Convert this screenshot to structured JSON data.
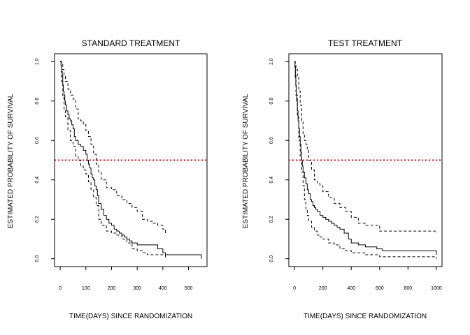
{
  "chart_data": [
    {
      "type": "line",
      "title": "STANDARD TREATMENT",
      "xlabel": "TIME(DAYS) SINCE RANDOMIZATION",
      "ylabel": "ESTIMATED  PROBABILITY  OF  SURVIVAL",
      "xlim": [
        -22,
        572
      ],
      "ylim": [
        -0.04,
        1.04
      ],
      "xticks": [
        0,
        100,
        200,
        300,
        400,
        500
      ],
      "yticks": [
        0.0,
        0.2,
        0.4,
        0.6,
        0.8,
        1.0
      ],
      "ytick_labels": [
        "0.0",
        "0.2",
        "0.4",
        "0.6",
        "0.8",
        "1.0"
      ],
      "reference_line": {
        "y": 0.5,
        "color": "#ff0000",
        "style": "dotted"
      },
      "series": [
        {
          "role": "estimate",
          "style": "solid",
          "x": [
            0,
            3,
            5,
            8,
            10,
            12,
            15,
            18,
            20,
            25,
            30,
            35,
            40,
            45,
            50,
            55,
            60,
            70,
            80,
            90,
            100,
            105,
            110,
            115,
            120,
            125,
            130,
            135,
            140,
            145,
            150,
            160,
            170,
            180,
            190,
            200,
            210,
            220,
            230,
            240,
            250,
            260,
            270,
            280,
            300,
            320,
            340,
            360,
            380,
            400,
            410,
            550
          ],
          "y": [
            1.0,
            0.98,
            0.95,
            0.93,
            0.88,
            0.85,
            0.83,
            0.8,
            0.78,
            0.75,
            0.73,
            0.71,
            0.7,
            0.68,
            0.66,
            0.62,
            0.6,
            0.58,
            0.57,
            0.55,
            0.53,
            0.5,
            0.48,
            0.46,
            0.43,
            0.41,
            0.4,
            0.37,
            0.35,
            0.32,
            0.28,
            0.25,
            0.22,
            0.2,
            0.18,
            0.17,
            0.15,
            0.14,
            0.13,
            0.12,
            0.11,
            0.1,
            0.09,
            0.08,
            0.07,
            0.07,
            0.07,
            0.07,
            0.05,
            0.03,
            0.02,
            0.0
          ]
        },
        {
          "role": "upper",
          "style": "dashed",
          "x": [
            0,
            5,
            10,
            15,
            20,
            30,
            40,
            50,
            60,
            70,
            80,
            90,
            100,
            110,
            120,
            130,
            140,
            150,
            160,
            180,
            200,
            220,
            240,
            260,
            280,
            300,
            320,
            340,
            360,
            380,
            400,
            410
          ],
          "y": [
            1.0,
            0.99,
            0.96,
            0.93,
            0.9,
            0.86,
            0.83,
            0.81,
            0.76,
            0.71,
            0.7,
            0.68,
            0.65,
            0.62,
            0.58,
            0.53,
            0.48,
            0.44,
            0.4,
            0.36,
            0.35,
            0.32,
            0.3,
            0.28,
            0.26,
            0.24,
            0.2,
            0.19,
            0.18,
            0.17,
            0.15,
            0.13
          ]
        },
        {
          "role": "lower",
          "style": "dashed",
          "x": [
            0,
            5,
            10,
            15,
            20,
            30,
            40,
            50,
            60,
            70,
            80,
            90,
            100,
            110,
            120,
            130,
            140,
            150,
            160,
            180,
            200,
            220,
            240,
            260,
            280,
            300,
            320,
            340,
            360,
            380,
            400,
            410
          ],
          "y": [
            1.0,
            0.9,
            0.82,
            0.76,
            0.72,
            0.65,
            0.6,
            0.57,
            0.52,
            0.5,
            0.47,
            0.45,
            0.43,
            0.39,
            0.35,
            0.31,
            0.27,
            0.2,
            0.17,
            0.14,
            0.13,
            0.12,
            0.1,
            0.08,
            0.05,
            0.04,
            0.03,
            0.02,
            0.02,
            0.02,
            0.02,
            0.0
          ]
        }
      ]
    },
    {
      "type": "line",
      "title": "TEST TREATMENT",
      "xlabel": "TIME(DAYS) SINCE RANDOMIZATION",
      "ylabel": "ESTIMATED  PROBABILITY  OF  SURVIVAL",
      "xlim": [
        -40,
        1040
      ],
      "ylim": [
        -0.04,
        1.04
      ],
      "xticks": [
        0,
        200,
        400,
        600,
        800,
        1000
      ],
      "yticks": [
        0.0,
        0.2,
        0.4,
        0.6,
        0.8,
        1.0
      ],
      "ytick_labels": [
        "0.0",
        "0.2",
        "0.4",
        "0.6",
        "0.8",
        "1.0"
      ],
      "reference_line": {
        "y": 0.5,
        "color": "#ff0000",
        "style": "dotted"
      },
      "series": [
        {
          "role": "estimate",
          "style": "solid",
          "x": [
            0,
            3,
            6,
            9,
            12,
            15,
            20,
            25,
            30,
            35,
            40,
            45,
            50,
            55,
            60,
            70,
            80,
            90,
            100,
            110,
            120,
            130,
            140,
            150,
            160,
            180,
            200,
            220,
            240,
            260,
            280,
            300,
            320,
            350,
            380,
            400,
            450,
            500,
            580,
            620,
            700,
            800,
            900,
            1000
          ],
          "y": [
            1.0,
            0.97,
            0.93,
            0.88,
            0.84,
            0.8,
            0.75,
            0.7,
            0.66,
            0.62,
            0.58,
            0.54,
            0.5,
            0.47,
            0.44,
            0.41,
            0.38,
            0.35,
            0.33,
            0.3,
            0.29,
            0.27,
            0.26,
            0.25,
            0.24,
            0.22,
            0.21,
            0.2,
            0.19,
            0.18,
            0.17,
            0.16,
            0.15,
            0.13,
            0.1,
            0.08,
            0.07,
            0.06,
            0.05,
            0.04,
            0.04,
            0.04,
            0.04,
            0.02
          ]
        },
        {
          "role": "upper",
          "style": "dashed",
          "x": [
            0,
            5,
            10,
            20,
            30,
            40,
            50,
            60,
            70,
            80,
            90,
            100,
            120,
            140,
            160,
            180,
            200,
            240,
            280,
            320,
            360,
            400,
            450,
            500,
            600,
            800,
            1000
          ],
          "y": [
            1.0,
            0.99,
            0.96,
            0.92,
            0.85,
            0.78,
            0.7,
            0.63,
            0.6,
            0.58,
            0.55,
            0.5,
            0.45,
            0.4,
            0.38,
            0.37,
            0.34,
            0.31,
            0.28,
            0.26,
            0.24,
            0.21,
            0.18,
            0.17,
            0.14,
            0.14,
            0.13
          ]
        },
        {
          "role": "lower",
          "style": "dashed",
          "x": [
            0,
            5,
            10,
            20,
            30,
            40,
            50,
            60,
            70,
            80,
            90,
            100,
            120,
            140,
            160,
            180,
            200,
            240,
            280,
            320,
            360,
            400,
            450,
            500,
            600,
            800,
            1000
          ],
          "y": [
            1.0,
            0.92,
            0.83,
            0.72,
            0.6,
            0.52,
            0.44,
            0.37,
            0.3,
            0.25,
            0.22,
            0.19,
            0.16,
            0.14,
            0.12,
            0.11,
            0.1,
            0.08,
            0.07,
            0.05,
            0.04,
            0.03,
            0.03,
            0.02,
            0.01,
            0.01,
            0.0
          ]
        }
      ]
    }
  ]
}
